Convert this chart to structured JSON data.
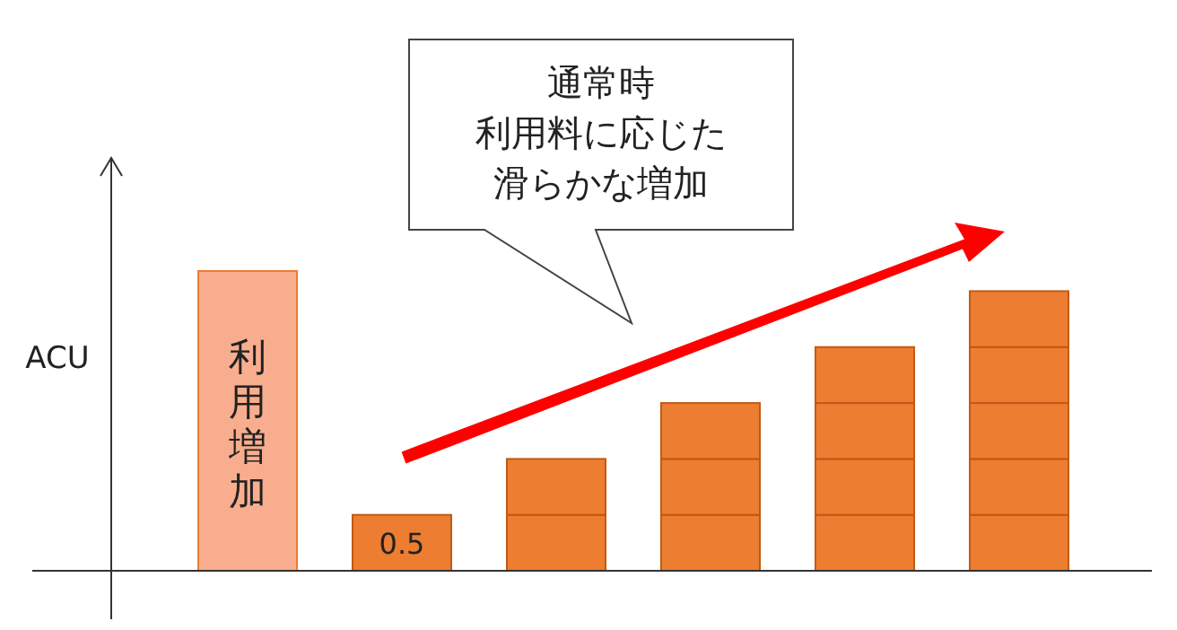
{
  "chart_data": {
    "type": "bar",
    "ylabel": "ACU",
    "stacked": true,
    "categories": [
      null,
      null,
      null,
      null,
      null,
      null
    ],
    "series": [
      {
        "colors": [
          "#f8ae8e",
          "#ed7d31",
          "#ed7d31",
          "#ed7d31",
          "#ed7d31",
          "#ed7d31"
        ],
        "values": [
          2.68,
          0.5,
          0.5,
          0.5,
          0.5,
          0.5
        ],
        "value_labels": [
          "利用増加",
          "0.5",
          null,
          null,
          null,
          null
        ]
      },
      {
        "color": "#ed7d31",
        "values": [
          null,
          null,
          0.5,
          0.5,
          0.5,
          0.5
        ]
      },
      {
        "color": "#ed7d31",
        "values": [
          null,
          null,
          null,
          0.5,
          0.5,
          0.5
        ]
      },
      {
        "color": "#ed7d31",
        "values": [
          null,
          null,
          null,
          null,
          0.5,
          0.5
        ]
      },
      {
        "color": "#ed7d31",
        "values": [
          null,
          null,
          null,
          null,
          null,
          0.5
        ]
      }
    ],
    "annotations": [
      "通常時",
      "利用料に応じた",
      "滑らかな増加"
    ]
  }
}
